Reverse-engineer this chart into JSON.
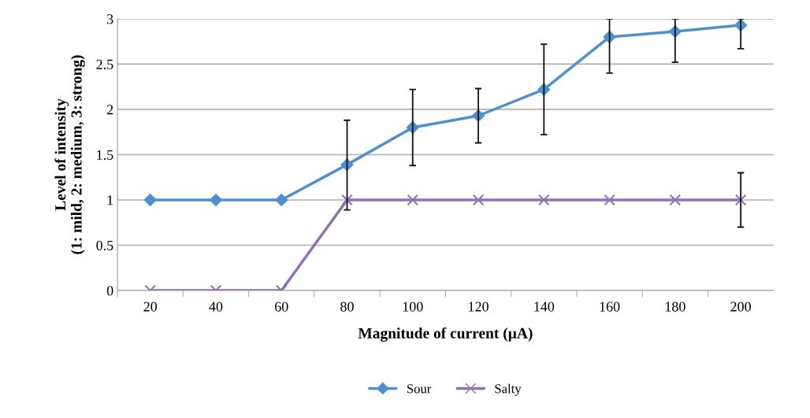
{
  "chart_data": {
    "type": "line",
    "xlabel": "Magnitude of current (µA)",
    "ylabel": "Level of intensity\n(1: mild, 2: medium, 3: strong)",
    "categories": [
      "20",
      "40",
      "60",
      "80",
      "100",
      "120",
      "140",
      "160",
      "180",
      "200"
    ],
    "series": [
      {
        "name": "Sour",
        "color": "#4f8fd0",
        "marker": "diamond",
        "values": [
          1,
          1,
          1,
          1.39,
          1.8,
          1.93,
          2.22,
          2.8,
          2.86,
          2.93
        ],
        "errors": [
          null,
          null,
          null,
          [
            0.89,
            1.88
          ],
          [
            1.38,
            2.22
          ],
          [
            1.63,
            2.23
          ],
          [
            1.72,
            2.72
          ],
          [
            2.4,
            3
          ],
          [
            2.52,
            3
          ],
          [
            2.67,
            3
          ]
        ]
      },
      {
        "name": "Salty",
        "color": "#8e72b8",
        "marker": "cross",
        "values": [
          0,
          0,
          0,
          1,
          1,
          1,
          1,
          1,
          1,
          1
        ],
        "errors": [
          null,
          null,
          null,
          null,
          null,
          null,
          null,
          null,
          null,
          [
            0.7,
            1.3
          ]
        ]
      }
    ],
    "ylim": [
      0,
      3
    ],
    "yticks": [
      0,
      0.5,
      1,
      1.5,
      2,
      2.5,
      3
    ],
    "grid": "y",
    "legend": "bottom",
    "line_style": "solid"
  }
}
